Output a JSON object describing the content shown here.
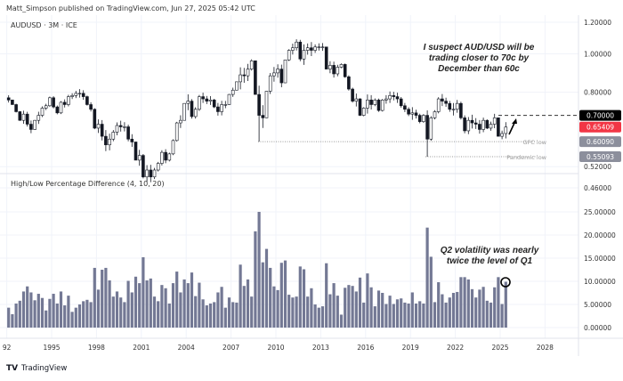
{
  "header": {
    "published": "Matt_Simpson published on TradingView.com, Jun 27, 2025 05:42 UTC"
  },
  "footer": {
    "logo_text": "TradingView"
  },
  "colors": {
    "up_body": "#ffffff",
    "down_body": "#131722",
    "wick": "#131722",
    "volatility_bar": "#737894",
    "last_price_badge": "#f23645",
    "target_badge": "#000000",
    "level_badge": "#8c8f9c"
  },
  "chart_data": [
    {
      "type": "candlestick",
      "title": "AUDUSD · 3M · ICE",
      "scale": "log",
      "ylim": [
        0.44,
        1.24
      ],
      "y_ticks": [
        "1.20000",
        "1.00000",
        "0.80000",
        "0.52000",
        "0.46000"
      ],
      "x_ticks": [
        "92",
        "1995",
        "1998",
        "2001",
        "2004",
        "2007",
        "2010",
        "2013",
        "2016",
        "2019",
        "2022",
        "2025",
        "2028"
      ],
      "start": "1992 Q1",
      "period": "quarter",
      "first_open": 0.775,
      "close": [
        0.765,
        0.745,
        0.715,
        0.68,
        0.705,
        0.665,
        0.645,
        0.68,
        0.7,
        0.73,
        0.74,
        0.775,
        0.735,
        0.71,
        0.755,
        0.745,
        0.78,
        0.785,
        0.795,
        0.795,
        0.78,
        0.745,
        0.725,
        0.65,
        0.665,
        0.62,
        0.59,
        0.61,
        0.635,
        0.66,
        0.655,
        0.655,
        0.61,
        0.6,
        0.54,
        0.555,
        0.49,
        0.51,
        0.49,
        0.51,
        0.53,
        0.565,
        0.54,
        0.56,
        0.605,
        0.67,
        0.68,
        0.75,
        0.76,
        0.695,
        0.725,
        0.78,
        0.77,
        0.76,
        0.765,
        0.735,
        0.715,
        0.745,
        0.745,
        0.79,
        0.81,
        0.85,
        0.885,
        0.88,
        0.915,
        0.96,
        0.79,
        0.7,
        0.69,
        0.805,
        0.88,
        0.895,
        0.915,
        0.845,
        0.965,
        1.02,
        1.035,
        1.07,
        0.97,
        1.02,
        1.035,
        1.02,
        1.04,
        1.04,
        1.04,
        0.915,
        0.935,
        0.89,
        0.925,
        0.94,
        0.875,
        0.815,
        0.76,
        0.77,
        0.7,
        0.73,
        0.765,
        0.745,
        0.765,
        0.72,
        0.765,
        0.77,
        0.785,
        0.78,
        0.77,
        0.74,
        0.725,
        0.705,
        0.71,
        0.7,
        0.675,
        0.7,
        0.61,
        0.69,
        0.715,
        0.77,
        0.76,
        0.75,
        0.725,
        0.725,
        0.75,
        0.69,
        0.64,
        0.68,
        0.67,
        0.665,
        0.645,
        0.68,
        0.65,
        0.665,
        0.69,
        0.62,
        0.63,
        0.654
      ],
      "levels": [
        {
          "label": "",
          "value": "0.70000",
          "style": "dashed",
          "badge": "target"
        },
        {
          "label": "",
          "value": "0.65409",
          "style": "none",
          "badge": "last"
        },
        {
          "label": "GFC low",
          "value": "0.60090",
          "style": "dotted",
          "badge": "level"
        },
        {
          "label": "Pandemic low",
          "value": "0.55093",
          "style": "dotted",
          "badge": "level"
        }
      ],
      "annotation": [
        "I suspect AUD/USD will be",
        "trading closer to 70c by",
        "December than 60c"
      ]
    },
    {
      "type": "bar",
      "title": "High/Low Percentage Difference (4, 10, 20)",
      "ylim": [
        0,
        27
      ],
      "y_ticks": [
        "25.00000",
        "20.00000",
        "15.00000",
        "10.00000",
        "5.00000",
        "0.00000"
      ],
      "values": [
        4.3,
        2.9,
        5.2,
        5.8,
        7.8,
        8.9,
        7.6,
        5.9,
        7.3,
        6.4,
        3.7,
        6.2,
        7.3,
        5.2,
        7.8,
        4.8,
        6.9,
        3.4,
        4.3,
        5.0,
        5.7,
        6.0,
        5.5,
        12.9,
        8.2,
        12.5,
        12.9,
        10.2,
        6.7,
        7.8,
        6.5,
        5.5,
        10.1,
        7.6,
        11.0,
        9.6,
        15.2,
        10.2,
        10.6,
        6.7,
        5.7,
        9.2,
        8.5,
        5.2,
        9.6,
        12.1,
        7.6,
        10.4,
        9.6,
        11.9,
        6.8,
        9.7,
        6.1,
        4.8,
        5.2,
        5.5,
        7.6,
        8.8,
        4.3,
        6.5,
        5.5,
        5.4,
        13.6,
        9.0,
        10.4,
        6.7,
        20.8,
        25.0,
        14.1,
        17.0,
        12.9,
        8.9,
        8.1,
        14.0,
        14.5,
        7.1,
        6.5,
        6.7,
        13.2,
        12.6,
        6.7,
        8.5,
        5.0,
        4.3,
        4.6,
        13.9,
        7.2,
        9.6,
        6.9,
        2.8,
        8.6,
        9.2,
        9.0,
        7.8,
        10.8,
        5.4,
        11.7,
        8.7,
        4.6,
        8.0,
        7.5,
        5.1,
        6.9,
        5.1,
        6.1,
        6.3,
        5.4,
        5.2,
        7.6,
        5.2,
        5.7,
        5.2,
        21.6,
        15.3,
        5.5,
        9.8,
        7.2,
        5.4,
        6.5,
        7.5,
        7.7,
        10.9,
        10.9,
        10.4,
        8.3,
        6.5,
        8.2,
        8.8,
        5.8,
        5.4,
        8.7,
        10.9,
        5.1,
        9.9
      ],
      "annotation": [
        "Q2 volatility was nearly",
        "twice the level of Q1"
      ]
    }
  ]
}
